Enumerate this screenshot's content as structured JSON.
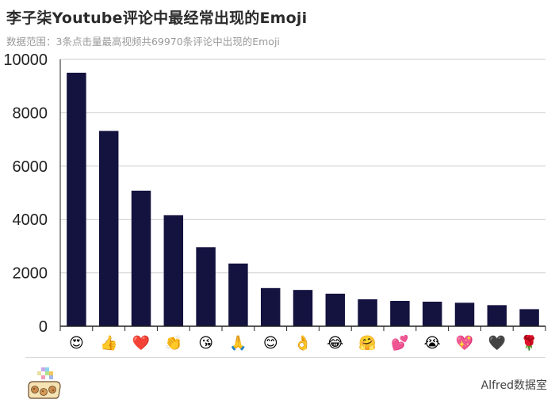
{
  "header": {
    "title": "李子柒Youtube评论中最经常出现的Emoji",
    "subtitle": "数据范围：3条点击量最高视频共69970条评论中出现的Emoji"
  },
  "footer": {
    "brand": "Alfred数据室",
    "logo_icon": "cookie-jar-logo-icon"
  },
  "colors": {
    "bar": "#14123f",
    "grid": "#cccccc",
    "axis": "#222222",
    "title": "#2b2b2b",
    "subtitle": "#9a9a9a"
  },
  "chart_data": {
    "type": "bar",
    "title": "李子柒Youtube评论中最经常出现的Emoji",
    "subtitle": "数据范围：3条点击量最高视频共69970条评论中出现的Emoji",
    "xlabel": "",
    "ylabel": "",
    "ylim": [
      0,
      10000
    ],
    "yticks": [
      0,
      2000,
      4000,
      6000,
      8000,
      10000
    ],
    "grid": true,
    "legend": "none",
    "categories": [
      "😍",
      "👍",
      "❤️",
      "👏",
      "😘",
      "🙏",
      "😊",
      "👌",
      "😂",
      "🤗",
      "💕",
      "😭",
      "💖",
      "🖤",
      "🌹"
    ],
    "category_icons": [
      "heart-eyes-emoji-icon",
      "thumbs-up-emoji-icon",
      "red-heart-emoji-icon",
      "clapping-hands-emoji-icon",
      "face-blowing-kiss-emoji-icon",
      "folded-hands-emoji-icon",
      "smiling-face-emoji-icon",
      "ok-hand-emoji-icon",
      "tears-of-joy-emoji-icon",
      "hugging-face-emoji-icon",
      "two-hearts-emoji-icon",
      "loudly-crying-emoji-icon",
      "sparkling-heart-emoji-icon",
      "black-heart-emoji-icon",
      "rose-emoji-icon"
    ],
    "values": [
      9500,
      7320,
      5080,
      4160,
      2960,
      2350,
      1430,
      1360,
      1220,
      1010,
      950,
      920,
      880,
      790,
      640
    ]
  }
}
